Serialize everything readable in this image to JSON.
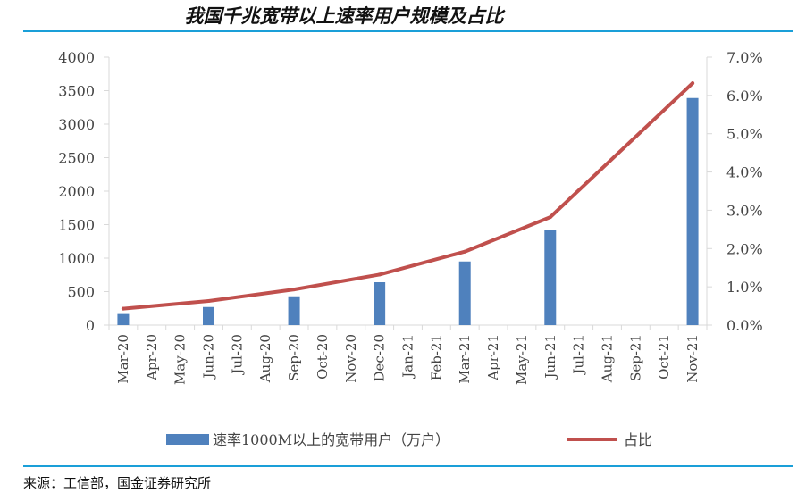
{
  "title": "我国千兆宽带以上速率用户规模及占比",
  "source": "来源：工信部，国金证券研究所",
  "colors": {
    "bar": "#4f81bd",
    "line": "#c0504d",
    "rule": "#1a9fd8"
  },
  "chart_data": {
    "type": "bar",
    "categories": [
      "Mar-20",
      "Apr-20",
      "May-20",
      "Jun-20",
      "Jul-20",
      "Aug-20",
      "Sep-20",
      "Oct-20",
      "Nov-20",
      "Dec-20",
      "Jan-21",
      "Feb-21",
      "Mar-21",
      "Apr-21",
      "May-21",
      "Jun-21",
      "Jul-21",
      "Aug-21",
      "Sep-21",
      "Oct-21",
      "Nov-21"
    ],
    "series": [
      {
        "name": "速率1000M以上的宽带用户（万户）",
        "type": "bar",
        "axis": "left",
        "values": [
          165,
          null,
          null,
          270,
          null,
          null,
          430,
          null,
          null,
          640,
          null,
          null,
          950,
          null,
          null,
          1420,
          null,
          null,
          null,
          null,
          3390
        ]
      },
      {
        "name": "占比",
        "type": "line",
        "axis": "right",
        "values": [
          0.0043,
          null,
          null,
          0.0063,
          null,
          null,
          0.0093,
          null,
          null,
          0.0132,
          null,
          null,
          0.0192,
          null,
          null,
          0.0282,
          null,
          null,
          null,
          null,
          0.0632
        ]
      }
    ],
    "y_left": {
      "min": 0,
      "max": 4000,
      "ticks": [
        "0",
        "500",
        "1000",
        "1500",
        "2000",
        "2500",
        "3000",
        "3500",
        "4000"
      ]
    },
    "y_right": {
      "min": 0,
      "max": 0.07,
      "ticks": [
        "0.0%",
        "1.0%",
        "2.0%",
        "3.0%",
        "4.0%",
        "5.0%",
        "6.0%",
        "7.0%"
      ]
    },
    "grid": false,
    "legend_position": "bottom"
  }
}
